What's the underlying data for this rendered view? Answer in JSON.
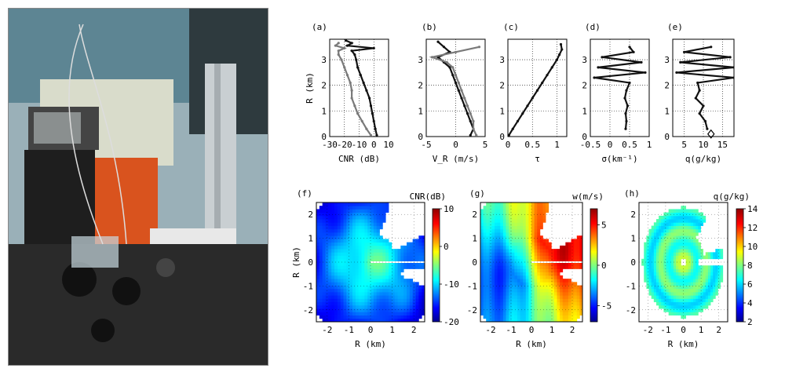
{
  "figure": {
    "panel_tags": [
      "(a)",
      "(b)",
      "(c)",
      "(d)",
      "(e)",
      "(f)",
      "(g)",
      "(h)"
    ]
  },
  "colors": {
    "series_black": "#111111",
    "series_gray": "#7a7a7a",
    "jet_low": "#00008f",
    "jet_high": "#8f0000"
  },
  "chart_data": [
    {
      "id": "a",
      "type": "line",
      "xlabel": "CNR (dB)",
      "ylabel": "R (km)",
      "xlim": [
        -30,
        10
      ],
      "ylim": [
        0,
        3.8
      ],
      "xticks": [
        "-30",
        "-20",
        "-10",
        "0",
        "10"
      ],
      "xtick_values": [
        -30,
        -20,
        -10,
        0,
        10
      ],
      "yticks": [
        "0",
        "1",
        "2",
        "3"
      ],
      "ytick_values": [
        0,
        1,
        2,
        3
      ],
      "grid": true,
      "series": [
        {
          "color": "black",
          "y": [
            0.05,
            0.3,
            0.6,
            0.9,
            1.2,
            1.5,
            1.8,
            2.1,
            2.4,
            2.7,
            3.0,
            3.2,
            3.35,
            3.45,
            3.55,
            3.65,
            3.75
          ],
          "x": [
            2,
            1,
            0,
            -1,
            -2,
            -3,
            -5,
            -7,
            -9,
            -11,
            -12,
            -13,
            -15,
            0,
            -18,
            -15,
            -19
          ]
        },
        {
          "color": "gray",
          "y": [
            0.05,
            0.3,
            0.6,
            0.9,
            1.2,
            1.5,
            1.8,
            2.1,
            2.4,
            2.7,
            3.0,
            3.2,
            3.35,
            3.45,
            3.55,
            3.65
          ],
          "x": [
            -2,
            -5,
            -8,
            -11,
            -13,
            -15,
            -15,
            -16,
            -18,
            -20,
            -22,
            -24,
            -24,
            -20,
            -26,
            -24
          ]
        }
      ]
    },
    {
      "id": "b",
      "type": "line",
      "xlabel": "V_R (m/s)",
      "ylabel": "",
      "xlim": [
        -5,
        5
      ],
      "ylim": [
        0,
        3.8
      ],
      "xticks": [
        "-5",
        "0",
        "5"
      ],
      "xtick_values": [
        -5,
        0,
        5
      ],
      "yticks": [
        "0",
        "1",
        "2",
        "3"
      ],
      "ytick_values": [
        0,
        1,
        2,
        3
      ],
      "grid": true,
      "series": [
        {
          "color": "black",
          "y": [
            0.05,
            0.3,
            0.6,
            0.9,
            1.2,
            1.5,
            1.8,
            2.1,
            2.4,
            2.7,
            2.9,
            3.1,
            3.3,
            3.5,
            3.7
          ],
          "x": [
            2.5,
            3,
            2.5,
            2,
            1.5,
            1,
            0.5,
            0,
            -0.5,
            -1,
            -2,
            -3,
            -1,
            -2,
            -3
          ]
        },
        {
          "color": "gray",
          "y": [
            0.05,
            0.3,
            0.6,
            0.9,
            1.2,
            1.5,
            1.8,
            2.1,
            2.4,
            2.7,
            2.9,
            3.1,
            3.3,
            3.5
          ],
          "x": [
            3.5,
            3,
            3,
            2.5,
            2,
            1.5,
            1,
            0.5,
            0,
            -0.5,
            -1.5,
            -4,
            0,
            4
          ]
        }
      ]
    },
    {
      "id": "c",
      "type": "line",
      "xlabel": "τ",
      "ylabel": "",
      "xlim": [
        0,
        1.2
      ],
      "ylim": [
        0,
        3.8
      ],
      "xticks": [
        "0",
        "0.5",
        "1"
      ],
      "xtick_values": [
        0,
        0.5,
        1
      ],
      "yticks": [
        "0",
        "1",
        "2",
        "3"
      ],
      "ytick_values": [
        0,
        1,
        2,
        3
      ],
      "grid": true,
      "series": [
        {
          "color": "black",
          "y": [
            0.05,
            0.3,
            0.6,
            0.9,
            1.2,
            1.5,
            1.8,
            2.1,
            2.4,
            2.7,
            3.0,
            3.2,
            3.4,
            3.6
          ],
          "x": [
            0.02,
            0.1,
            0.2,
            0.3,
            0.4,
            0.5,
            0.6,
            0.7,
            0.8,
            0.9,
            1.0,
            1.05,
            1.1,
            1.08
          ]
        }
      ]
    },
    {
      "id": "d",
      "type": "line",
      "xlabel": "σ(km⁻¹)",
      "ylabel": "",
      "xlim": [
        -0.5,
        1
      ],
      "ylim": [
        0,
        3.8
      ],
      "xticks": [
        "-0.5",
        "0",
        "0.5",
        "1"
      ],
      "xtick_values": [
        -0.5,
        0,
        0.5,
        1
      ],
      "yticks": [
        "0",
        "1",
        "2",
        "3"
      ],
      "ytick_values": [
        0,
        1,
        2,
        3
      ],
      "grid": true,
      "series": [
        {
          "color": "black",
          "y": [
            0.3,
            0.6,
            0.9,
            1.2,
            1.5,
            1.8,
            2.1,
            2.3,
            2.5,
            2.7,
            2.9,
            3.1,
            3.3,
            3.5
          ],
          "x": [
            0.4,
            0.42,
            0.4,
            0.45,
            0.38,
            0.42,
            0.5,
            -0.4,
            0.9,
            -0.3,
            0.8,
            -0.2,
            0.6,
            0.5
          ]
        }
      ]
    },
    {
      "id": "e",
      "type": "line",
      "xlabel": "q(g/kg)",
      "ylabel": "",
      "xlim": [
        2,
        18
      ],
      "ylim": [
        0,
        3.8
      ],
      "xticks": [
        "5",
        "10",
        "15"
      ],
      "xtick_values": [
        5,
        10,
        15
      ],
      "yticks": [
        "0",
        "1",
        "2",
        "3"
      ],
      "ytick_values": [
        0,
        1,
        2,
        3
      ],
      "grid": true,
      "marker_point": {
        "x": 12,
        "y": 0.1
      },
      "series": [
        {
          "color": "black",
          "y": [
            0.3,
            0.6,
            0.9,
            1.2,
            1.5,
            1.8,
            2.1,
            2.3,
            2.5,
            2.7,
            2.9,
            3.1,
            3.3,
            3.5
          ],
          "x": [
            11,
            10.5,
            9,
            10,
            8,
            9,
            8.5,
            18,
            3,
            18,
            4,
            17,
            5,
            12
          ]
        }
      ]
    },
    {
      "id": "f",
      "type": "heatmap",
      "xlabel": "R (km)",
      "ylabel": "R (km)",
      "colorbar_label": "CNR(dB)",
      "xlim": [
        -2.5,
        2.5
      ],
      "ylim": [
        -2.5,
        2.5
      ],
      "xticks": [
        "-2",
        "-1",
        "0",
        "1",
        "2"
      ],
      "xtick_values": [
        -2,
        -1,
        0,
        1,
        2
      ],
      "yticks": [
        "-2",
        "-1",
        "0",
        "1",
        "2"
      ],
      "ytick_values": [
        -2,
        -1,
        0,
        1,
        2
      ],
      "clim": [
        -20,
        10
      ],
      "colorbar_ticks": [
        "-20",
        "-10",
        "0",
        "10"
      ],
      "colorbar_tick_values": [
        -20,
        -10,
        0,
        10
      ]
    },
    {
      "id": "g",
      "type": "heatmap",
      "xlabel": "R (km)",
      "ylabel": "",
      "colorbar_label": "w(m/s)",
      "xlim": [
        -2.5,
        2.5
      ],
      "ylim": [
        -2.5,
        2.5
      ],
      "xticks": [
        "-2",
        "-1",
        "0",
        "1",
        "2"
      ],
      "xtick_values": [
        -2,
        -1,
        0,
        1,
        2
      ],
      "yticks": [
        "-2",
        "-1",
        "0",
        "1",
        "2"
      ],
      "ytick_values": [
        -2,
        -1,
        0,
        1,
        2
      ],
      "clim": [
        -7,
        7
      ],
      "colorbar_ticks": [
        "-5",
        "0",
        "5"
      ],
      "colorbar_tick_values": [
        -5,
        0,
        5
      ]
    },
    {
      "id": "h",
      "type": "heatmap",
      "xlabel": "R (km)",
      "ylabel": "",
      "colorbar_label": "q(g/kg)",
      "xlim": [
        -2.5,
        2.5
      ],
      "ylim": [
        -2.5,
        2.5
      ],
      "xticks": [
        "-2",
        "-1",
        "0",
        "1",
        "2"
      ],
      "xtick_values": [
        -2,
        -1,
        0,
        1,
        2
      ],
      "yticks": [
        "-2",
        "-1",
        "0",
        "1",
        "2"
      ],
      "ytick_values": [
        -2,
        -1,
        0,
        1,
        2
      ],
      "clim": [
        2,
        14
      ],
      "colorbar_ticks": [
        "2",
        "4",
        "6",
        "8",
        "10",
        "12",
        "14"
      ],
      "colorbar_tick_values": [
        2,
        4,
        6,
        8,
        10,
        12,
        14
      ]
    }
  ]
}
